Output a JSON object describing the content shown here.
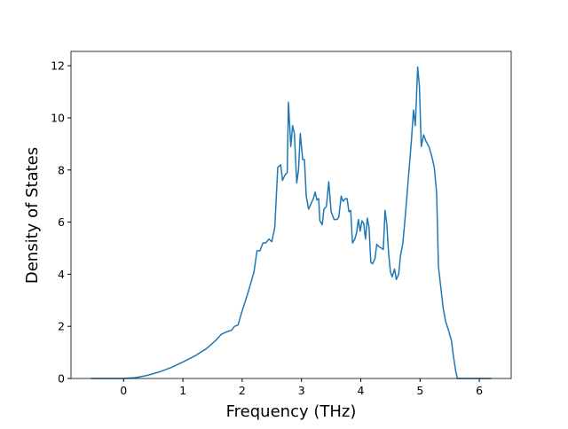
{
  "chart_data": {
    "type": "line",
    "xlabel": "Frequency (THz)",
    "ylabel": "Density of States",
    "x": [
      -0.55,
      0,
      0.2,
      0.4,
      0.6,
      0.8,
      1.0,
      1.2,
      1.4,
      1.55,
      1.65,
      1.75,
      1.82,
      1.87,
      1.93,
      2.0,
      2.1,
      2.2,
      2.25,
      2.3,
      2.35,
      2.4,
      2.45,
      2.5,
      2.55,
      2.6,
      2.65,
      2.68,
      2.72,
      2.76,
      2.78,
      2.82,
      2.85,
      2.88,
      2.92,
      2.95,
      2.98,
      3.02,
      3.05,
      3.08,
      3.12,
      3.16,
      3.2,
      3.23,
      3.26,
      3.29,
      3.31,
      3.35,
      3.38,
      3.42,
      3.46,
      3.5,
      3.55,
      3.6,
      3.63,
      3.67,
      3.7,
      3.74,
      3.77,
      3.8,
      3.83,
      3.86,
      3.9,
      3.93,
      3.96,
      3.99,
      4.02,
      4.05,
      4.08,
      4.11,
      4.14,
      4.17,
      4.2,
      4.24,
      4.27,
      4.31,
      4.35,
      4.38,
      4.41,
      4.44,
      4.47,
      4.5,
      4.53,
      4.57,
      4.6,
      4.64,
      4.67,
      4.71,
      4.75,
      4.8,
      4.85,
      4.89,
      4.92,
      4.96,
      4.99,
      5.02,
      5.06,
      5.1,
      5.15,
      5.2,
      5.24,
      5.28,
      5.31,
      5.35,
      5.39,
      5.43,
      5.48,
      5.53,
      5.56,
      5.6,
      5.63,
      6.2
    ],
    "series": [
      {
        "name": "DOS",
        "color": "#1f77b4",
        "values": [
          0,
          0,
          0.03,
          0.12,
          0.25,
          0.42,
          0.63,
          0.86,
          1.15,
          1.45,
          1.7,
          1.8,
          1.85,
          2.0,
          2.05,
          2.6,
          3.3,
          4.1,
          4.9,
          4.9,
          5.2,
          5.2,
          5.35,
          5.25,
          5.8,
          8.1,
          8.2,
          7.6,
          7.8,
          7.9,
          10.6,
          8.9,
          9.7,
          9.4,
          7.5,
          8.0,
          9.4,
          8.4,
          8.4,
          7.0,
          6.5,
          6.7,
          6.9,
          7.15,
          6.85,
          6.9,
          6.05,
          5.9,
          6.5,
          6.6,
          7.55,
          6.4,
          6.1,
          6.1,
          6.2,
          7.0,
          6.8,
          6.9,
          6.9,
          6.4,
          6.45,
          5.2,
          5.35,
          5.6,
          6.1,
          5.65,
          6.05,
          5.95,
          5.35,
          6.15,
          5.8,
          4.45,
          4.4,
          4.6,
          5.15,
          5.05,
          5.0,
          4.95,
          6.45,
          5.9,
          4.8,
          4.1,
          3.9,
          4.2,
          3.8,
          4.0,
          4.7,
          5.2,
          6.2,
          7.6,
          9.0,
          10.3,
          9.7,
          11.95,
          11.2,
          8.9,
          9.35,
          9.1,
          8.9,
          8.5,
          8.1,
          7.1,
          4.3,
          3.5,
          2.7,
          2.2,
          1.85,
          1.45,
          0.9,
          0.3,
          0,
          0
        ]
      }
    ],
    "xlim": [
      -0.8875,
      6.5375
    ],
    "ylim": [
      0,
      12.55
    ],
    "xticks": [
      0,
      1,
      2,
      3,
      4,
      5,
      6
    ],
    "yticks": [
      0,
      2,
      4,
      6,
      8,
      10,
      12
    ]
  }
}
